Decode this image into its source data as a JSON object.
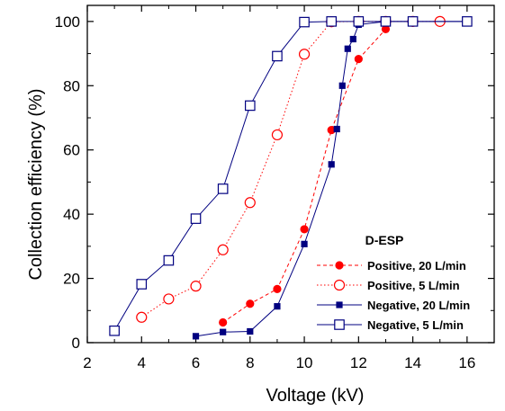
{
  "chart_data": {
    "type": "line",
    "xlabel": "Voltage (kV)",
    "ylabel": "Collection efficiency (%)",
    "xlim": [
      2,
      17
    ],
    "ylim": [
      0,
      105
    ],
    "xticks": [
      2,
      4,
      6,
      8,
      10,
      12,
      14,
      16
    ],
    "yticks": [
      0,
      20,
      40,
      60,
      80,
      100
    ],
    "xtick_labels": [
      "2",
      "4",
      "6",
      "8",
      "10",
      "12",
      "14",
      "16"
    ],
    "ytick_labels": [
      "0",
      "20",
      "40",
      "60",
      "80",
      "100"
    ],
    "grid": false,
    "legend": {
      "title": "D-ESP",
      "position": "bottom-right"
    },
    "series": [
      {
        "name": "Positive, 20 L/min",
        "color": "#ff0000",
        "line_style": "dashed",
        "marker": "filled-circle",
        "x": [
          7,
          8,
          9,
          10,
          11,
          12,
          13
        ],
        "y": [
          6.3,
          12.1,
          16.7,
          35.3,
          66.2,
          88.3,
          97.6
        ]
      },
      {
        "name": "Positive, 5 L/min",
        "color": "#ff0000",
        "line_style": "dotted",
        "marker": "open-circle",
        "x": [
          4,
          5,
          6,
          7,
          8,
          9,
          10,
          11,
          12,
          13,
          14,
          15
        ],
        "y": [
          7.9,
          13.6,
          17.6,
          28.9,
          43.6,
          64.7,
          89.8,
          99.9,
          100,
          100,
          100,
          100
        ]
      },
      {
        "name": "Negative, 20 L/min",
        "color": "#000080",
        "line_style": "solid",
        "marker": "filled-square",
        "x": [
          6,
          7,
          8,
          9,
          10,
          11,
          11.2,
          11.4,
          11.6,
          11.8,
          12,
          13,
          14,
          16
        ],
        "y": [
          2,
          3.3,
          3.5,
          11.3,
          30.7,
          55.5,
          66.5,
          80,
          91.5,
          94.5,
          99,
          100,
          100,
          100
        ]
      },
      {
        "name": "Negative, 5 L/min",
        "color": "#000080",
        "line_style": "solid",
        "marker": "open-square",
        "x": [
          3,
          4,
          5,
          6,
          7,
          8,
          9,
          10,
          11,
          12,
          13,
          14,
          16
        ],
        "y": [
          3.7,
          18.2,
          25.6,
          38.6,
          47.9,
          73.8,
          89.2,
          99.8,
          100,
          100,
          100,
          100,
          100
        ]
      }
    ]
  }
}
